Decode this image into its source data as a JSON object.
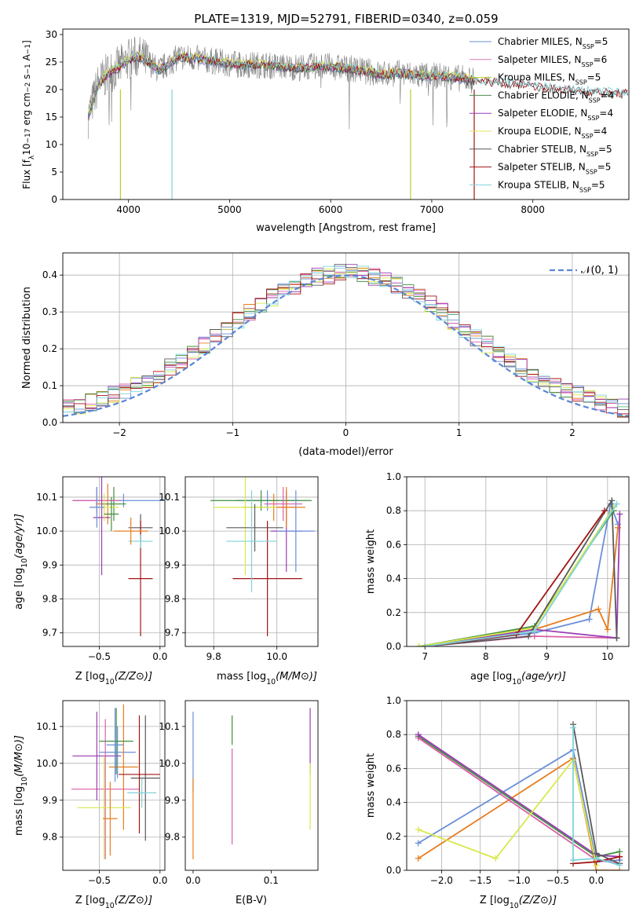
{
  "title": "PLATE=1319, MJD=52791, FIBERID=0340, z=0.059",
  "colors": [
    "#6a8fd8",
    "#e07ab5",
    "#b5cf2a",
    "#4f8a4f",
    "#9b3db5",
    "#e6e65a",
    "#555555",
    "#a01515",
    "#7fd3d8"
  ],
  "colors_alt": [
    "#6a8fd8",
    "#e87d1e",
    "#3f8f3f",
    "#d95fa8",
    "#9b3db5",
    "#d8e84a",
    "#5a5a5a",
    "#a01515",
    "#7fd3d8"
  ],
  "chart_data": [
    {
      "id": "spectrum",
      "type": "line",
      "title": "PLATE=1319, MJD=52791, FIBERID=0340, z=0.059",
      "xlabel": "wavelength [Angstrom, rest frame]",
      "ylabel": "Flux [f",
      "ylabel_full": "Flux [f_λ 10^-17 erg cm^-2 s^-1 A^-1]",
      "xlim": [
        3350,
        8950
      ],
      "ylim": [
        0,
        31
      ],
      "xticks": [
        4000,
        5000,
        6000,
        7000,
        8000
      ],
      "yticks": [
        0,
        5,
        10,
        15,
        20,
        25,
        30
      ],
      "legend_position": "right",
      "legend": [
        "Chabrier MILES, N_SSP=5",
        "Salpeter MILES, N_SSP=6",
        "Kroupa MILES, N_SSP=5",
        "Chabrier ELODIE, N_SSP=4",
        "Salpeter ELODIE, N_SSP=4",
        "Kroupa ELODIE, N_SSP=4",
        "Chabrier STELIB, N_SSP=5",
        "Salpeter STELIB, N_SSP=5",
        "Kroupa STELIB, N_SSP=5"
      ],
      "legend_names": [
        "Chabrier MILES, N",
        "Salpeter MILES, N",
        "Kroupa MILES, N",
        "Chabrier ELODIE, N",
        "Salpeter ELODIE, N",
        "Kroupa ELODIE, N",
        "Chabrier STELIB, N",
        "Salpeter STELIB, N",
        "Kroupa STELIB, N"
      ],
      "legend_nssp": [
        "5",
        "6",
        "5",
        "4",
        "4",
        "4",
        "5",
        "5",
        "5"
      ],
      "data_profile": {
        "x": [
          3600,
          3700,
          3800,
          3900,
          4000,
          4100,
          4200,
          4300,
          4500,
          4700,
          4900,
          5100,
          5300,
          5500,
          5700,
          5900,
          6100,
          6300,
          6500,
          6700,
          6900,
          7100,
          7300,
          7500,
          7700,
          7900,
          8100,
          8300,
          8500,
          8700,
          8900
        ],
        "y": [
          15,
          21,
          23,
          24,
          25.5,
          26,
          25,
          23.5,
          26,
          25.5,
          25,
          24.5,
          24.5,
          24.2,
          24,
          24.3,
          24,
          23.5,
          22.8,
          23,
          22.5,
          22.5,
          22,
          21.5,
          21.2,
          21,
          20.5,
          20,
          19.8,
          19.5,
          19.3
        ]
      },
      "model_gap_lines": [
        3920,
        4430,
        6790,
        7420
      ]
    },
    {
      "id": "residual_hist",
      "type": "line",
      "xlabel": "(data-model)/error",
      "ylabel": "Normed distribution",
      "xlim": [
        -2.5,
        2.5
      ],
      "ylim": [
        0,
        0.46
      ],
      "xticks": [
        -2,
        -1,
        0,
        1,
        2
      ],
      "yticks": [
        0.0,
        0.1,
        0.2,
        0.3,
        0.4
      ],
      "legend": [
        "𝒩(0, 1)"
      ],
      "legend_position": "top-right",
      "grid": true,
      "bin_width": 0.1
    },
    {
      "id": "age_vs_Z",
      "type": "scatter",
      "xlabel": "Z [log",
      "ylabel": "age  [log",
      "xlim": [
        -0.8,
        0.04
      ],
      "ylim": [
        9.66,
        10.16
      ],
      "xticks": [
        -0.5,
        0.0
      ],
      "yticks": [
        9.7,
        9.8,
        9.9,
        10.0,
        10.1
      ],
      "grid": true,
      "points": [
        {
          "x": -0.3,
          "y": 10.09,
          "xerr": 0.42,
          "yerr": 0.02
        },
        {
          "x": -0.43,
          "y": 10.08,
          "xerr": 0.1,
          "yerr": 0.06
        },
        {
          "x": -0.38,
          "y": 10.08,
          "xerr": 0.1,
          "yerr": 0.05
        },
        {
          "x": -0.52,
          "y": 10.09,
          "xerr": 0.2,
          "yerr": 0.04
        },
        {
          "x": -0.48,
          "y": 10.04,
          "xerr": 0.07,
          "yerr": 0.17
        },
        {
          "x": -0.46,
          "y": 10.07,
          "xerr": 0.12,
          "yerr": 0.04
        },
        {
          "x": -0.16,
          "y": 10.01,
          "xerr": 0.1,
          "yerr": 0.04
        },
        {
          "x": -0.16,
          "y": 9.86,
          "xerr": 0.1,
          "yerr": 0.17
        },
        {
          "x": -0.16,
          "y": 9.97,
          "xerr": 0.1,
          "yerr": 0.02
        },
        {
          "x": -0.52,
          "y": 10.07,
          "xerr": 0.06,
          "yerr": 0.06
        },
        {
          "x": -0.24,
          "y": 10.0,
          "xerr": 0.14,
          "yerr": 0.04
        },
        {
          "x": -0.4,
          "y": 10.05,
          "xerr": 0.06,
          "yerr": 0.05
        }
      ]
    },
    {
      "id": "age_vs_mass",
      "type": "scatter",
      "xlabel": "mass [log",
      "xlim": [
        9.71,
        10.13
      ],
      "ylim": [
        9.66,
        10.16
      ],
      "xticks": [
        9.8,
        10.0
      ],
      "yticks": [
        9.7,
        9.8,
        9.9,
        10.0,
        10.1
      ],
      "grid": true,
      "points": [
        {
          "x": 9.97,
          "y": 10.09,
          "xerr": 0.1,
          "yerr": 0.03
        },
        {
          "x": 9.99,
          "y": 10.07,
          "xerr": 0.1,
          "yerr": 0.04
        },
        {
          "x": 9.95,
          "y": 10.09,
          "xerr": 0.16,
          "yerr": 0.03
        },
        {
          "x": 10.02,
          "y": 10.08,
          "xerr": 0.06,
          "yerr": 0.05
        },
        {
          "x": 10.03,
          "y": 10.0,
          "xerr": 0.05,
          "yerr": 0.12
        },
        {
          "x": 9.9,
          "y": 10.07,
          "xerr": 0.1,
          "yerr": 0.2
        },
        {
          "x": 9.93,
          "y": 10.01,
          "xerr": 0.09,
          "yerr": 0.07
        },
        {
          "x": 9.97,
          "y": 9.86,
          "xerr": 0.11,
          "yerr": 0.17
        },
        {
          "x": 9.92,
          "y": 9.97,
          "xerr": 0.08,
          "yerr": 0.15
        },
        {
          "x": 10.06,
          "y": 10.0,
          "xerr": 0.06,
          "yerr": 0.12
        },
        {
          "x": 10.03,
          "y": 10.07,
          "xerr": 0.03,
          "yerr": 0.06
        }
      ]
    },
    {
      "id": "massweight_vs_age",
      "type": "line",
      "xlabel": "age  [log",
      "ylabel": "mass weight",
      "xlim": [
        6.7,
        10.35
      ],
      "ylim": [
        0,
        1
      ],
      "xticks": [
        7,
        8,
        9,
        10
      ],
      "yticks": [
        0.0,
        0.2,
        0.4,
        0.6,
        0.8,
        1.0
      ],
      "grid": true,
      "series": [
        {
          "x": [
            7.0,
            8.8,
            9.7,
            10.05,
            10.17
          ],
          "y": [
            0.0,
            0.08,
            0.16,
            0.84,
            0.72
          ]
        },
        {
          "x": [
            7.0,
            8.8,
            9.85,
            10.0,
            10.17
          ],
          "y": [
            0.0,
            0.1,
            0.22,
            0.1,
            0.7
          ]
        },
        {
          "x": [
            6.9,
            8.8,
            10.1
          ],
          "y": [
            0.0,
            0.12,
            0.8
          ]
        },
        {
          "x": [
            7.0,
            8.8,
            10.15
          ],
          "y": [
            0.0,
            0.06,
            0.05
          ]
        },
        {
          "x": [
            7.0,
            8.8,
            10.15,
            10.2
          ],
          "y": [
            0.0,
            0.1,
            0.05,
            0.78
          ]
        },
        {
          "x": [
            6.9,
            8.8,
            10.1
          ],
          "y": [
            0.0,
            0.11,
            0.82
          ]
        },
        {
          "x": [
            7.0,
            8.7,
            10.07,
            10.15
          ],
          "y": [
            0.0,
            0.06,
            0.86,
            0.05
          ]
        },
        {
          "x": [
            7.0,
            8.5,
            9.95
          ],
          "y": [
            0.0,
            0.07,
            0.8
          ]
        },
        {
          "x": [
            7.0,
            8.8,
            10.15
          ],
          "y": [
            0.0,
            0.09,
            0.84
          ]
        }
      ]
    },
    {
      "id": "mass_vs_Z",
      "type": "scatter",
      "xlabel": "Z [log",
      "ylabel": "mass [log",
      "xlim": [
        -0.8,
        0.04
      ],
      "ylim": [
        9.71,
        10.17
      ],
      "xticks": [
        -0.5,
        0.0
      ],
      "yticks": [
        9.8,
        9.9,
        10.0,
        10.1
      ],
      "grid": true,
      "points": [
        {
          "x": -0.35,
          "y": 10.03,
          "xerr": 0.15,
          "yerr": 0.07
        },
        {
          "x": -0.3,
          "y": 9.99,
          "xerr": 0.12,
          "yerr": 0.17
        },
        {
          "x": -0.36,
          "y": 10.06,
          "xerr": 0.14,
          "yerr": 0.09
        },
        {
          "x": -0.45,
          "y": 9.93,
          "xerr": 0.28,
          "yerr": 0.19
        },
        {
          "x": -0.52,
          "y": 10.02,
          "xerr": 0.2,
          "yerr": 0.12
        },
        {
          "x": -0.46,
          "y": 9.88,
          "xerr": 0.22,
          "yerr": 0.14
        },
        {
          "x": -0.12,
          "y": 9.96,
          "xerr": 0.12,
          "yerr": 0.17
        },
        {
          "x": -0.17,
          "y": 9.97,
          "xerr": 0.17,
          "yerr": 0.16
        },
        {
          "x": -0.15,
          "y": 9.92,
          "xerr": 0.12,
          "yerr": 0.04
        },
        {
          "x": -0.37,
          "y": 10.05,
          "xerr": 0.07,
          "yerr": 0.1
        },
        {
          "x": -0.41,
          "y": 9.85,
          "xerr": 0.06,
          "yerr": 0.1
        }
      ]
    },
    {
      "id": "mass_vs_ebv",
      "type": "scatter",
      "xlabel": "E(B-V)",
      "xlim": [
        -0.01,
        0.16
      ],
      "ylim": [
        9.71,
        10.17
      ],
      "xticks": [
        0.0,
        0.1
      ],
      "yticks": [
        9.8,
        9.9,
        10.0,
        10.1
      ],
      "grid": false,
      "points": [
        {
          "x": 0.0,
          "y": 10.03,
          "xerr": 0,
          "yerr": 0.11
        },
        {
          "x": 0.0,
          "y": 9.85,
          "xerr": 0,
          "yerr": 0.11
        },
        {
          "x": 0.05,
          "y": 10.09,
          "xerr": 0,
          "yerr": 0.04
        },
        {
          "x": 0.05,
          "y": 9.91,
          "xerr": 0,
          "yerr": 0.13
        },
        {
          "x": 0.15,
          "y": 10.06,
          "xerr": 0,
          "yerr": 0.09
        },
        {
          "x": 0.15,
          "y": 9.91,
          "xerr": 0,
          "yerr": 0.09
        }
      ]
    },
    {
      "id": "massweight_vs_Z",
      "type": "line",
      "xlabel": "Z [log",
      "ylabel": "mass weight",
      "xlim": [
        -2.45,
        0.42
      ],
      "ylim": [
        0,
        1
      ],
      "xticks": [
        -2.0,
        -1.5,
        -1.0,
        -0.5,
        0.0
      ],
      "yticks": [
        0.0,
        0.2,
        0.4,
        0.6,
        0.8,
        1.0
      ],
      "grid": true,
      "series": [
        {
          "x": [
            -2.3,
            -0.3,
            0.0,
            0.3
          ],
          "y": [
            0.16,
            0.71,
            0.05,
            0.06
          ]
        },
        {
          "x": [
            -2.3,
            -0.3,
            0.0,
            0.3
          ],
          "y": [
            0.07,
            0.66,
            0.0,
            0.0
          ]
        },
        {
          "x": [
            -2.3,
            0.0,
            0.3
          ],
          "y": [
            0.79,
            0.08,
            0.11
          ]
        },
        {
          "x": [
            -2.3,
            0.0,
            0.3
          ],
          "y": [
            0.78,
            0.06,
            0.04
          ]
        },
        {
          "x": [
            -2.3,
            0.0,
            0.3
          ],
          "y": [
            0.8,
            0.09,
            0.08
          ]
        },
        {
          "x": [
            -2.3,
            -1.3,
            -0.3,
            0.0
          ],
          "y": [
            0.24,
            0.07,
            0.65,
            0.03
          ]
        },
        {
          "x": [
            -0.3,
            0.0,
            0.3
          ],
          "y": [
            0.86,
            0.1,
            0.04
          ]
        },
        {
          "x": [
            -0.3,
            0.0,
            0.3
          ],
          "y": [
            0.04,
            0.05,
            0.08
          ]
        },
        {
          "x": [
            -0.3,
            -0.3,
            0.0,
            0.3
          ],
          "y": [
            0.84,
            0.06,
            0.07,
            0.03
          ]
        }
      ]
    }
  ]
}
